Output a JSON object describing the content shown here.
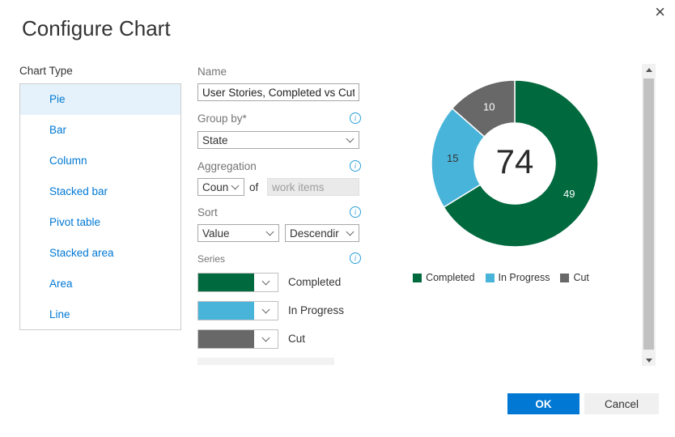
{
  "dialog": {
    "title": "Configure Chart"
  },
  "icons": {
    "close": "×",
    "info": "i"
  },
  "chart_type": {
    "label": "Chart Type",
    "selected": "Pie",
    "options": [
      "Pie",
      "Bar",
      "Column",
      "Stacked bar",
      "Pivot table",
      "Stacked area",
      "Area",
      "Line"
    ]
  },
  "form": {
    "name": {
      "label": "Name",
      "value": "User Stories, Completed vs Cut"
    },
    "group_by": {
      "label": "Group by*",
      "value": "State"
    },
    "aggregation": {
      "label": "Aggregation",
      "value": "Coun",
      "of_label": "of",
      "field_value": "work items"
    },
    "sort": {
      "label": "Sort",
      "by_value": "Value",
      "direction_value": "Descendir"
    },
    "series_label": "Series"
  },
  "chart_data": {
    "type": "pie",
    "donut": true,
    "title": "User Stories, Completed vs Cut",
    "total": 74,
    "series": [
      {
        "name": "Completed",
        "value": 49,
        "color": "#00693e"
      },
      {
        "name": "In Progress",
        "value": 15,
        "color": "#49b4d9"
      },
      {
        "name": "Cut",
        "value": 10,
        "color": "#686868"
      }
    ],
    "legend_position": "bottom",
    "center_label": "74"
  },
  "footer": {
    "ok_label": "OK",
    "cancel_label": "Cancel"
  },
  "colors": {
    "accent": "#0078d4",
    "selected_row_bg": "#e6f2fb",
    "label_gray": "#757575",
    "scrollbar_thumb": "#c1c1c1"
  }
}
